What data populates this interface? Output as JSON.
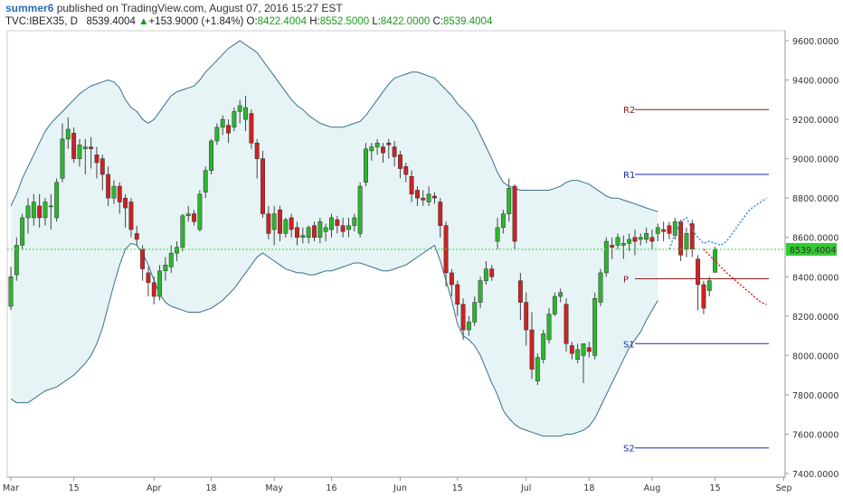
{
  "header": {
    "author": "summer6",
    "published_text": " published on TradingView.com, August 07, 2016 15:27 EST"
  },
  "ticker": {
    "symbol": "TVC:IBEX35, D",
    "last": "8539.4004",
    "change_arrow": "▲",
    "change": "+153.9000 (+1.84%)",
    "o_label": "O:",
    "o_value": "8422.4004",
    "h_label": "H:",
    "h_value": "8552.5000",
    "l_label": "L:",
    "l_value": "8422.0000",
    "c_label": "C:",
    "c_value": "8539.4004"
  },
  "colors": {
    "up": "#2db52d",
    "down": "#cc2222",
    "band_fill": "#e6f4f6",
    "band_line": "#3a6f8a",
    "price_line": "#33dd33",
    "price_tag": "#2fcc2f",
    "r_line": "#8b1a1a",
    "s_line": "#1a2aa8",
    "projection_up": "#3a8ad8",
    "projection_down": "#dd2222"
  },
  "chart_data": {
    "type": "candlestick",
    "y_axis": {
      "min": 7400,
      "max": 9600,
      "ticks": [
        "9600.0000",
        "9400.0000",
        "9200.0000",
        "9000.0000",
        "8800.0000",
        "8600.0000",
        "8400.0000",
        "8200.0000",
        "8000.0000",
        "7800.0000",
        "7600.0000",
        "7400.0000"
      ]
    },
    "x_axis": {
      "labels": [
        "Mar",
        "15",
        "Apr",
        "18",
        "May",
        "16",
        "Jun",
        "15",
        "Jul",
        "18",
        "Aug",
        "15",
        "Sep"
      ],
      "label_index": [
        0,
        11,
        25,
        35,
        46,
        56,
        68,
        78,
        90,
        101,
        112,
        123,
        135
      ]
    },
    "current_price": 8539.4004,
    "current_price_label": "8539.4004",
    "pivots": [
      {
        "label": "R2",
        "value": 9250,
        "kind": "r"
      },
      {
        "label": "R1",
        "value": 8920,
        "kind": "r1"
      },
      {
        "label": "P",
        "value": 8390,
        "kind": "p"
      },
      {
        "label": "S1",
        "value": 8060,
        "kind": "s"
      },
      {
        "label": "S2",
        "value": 7530,
        "kind": "s"
      }
    ],
    "candles": [
      [
        8250,
        8400,
        8230,
        8450
      ],
      [
        8410,
        8560,
        8380,
        8600
      ],
      [
        8560,
        8700,
        8540,
        8720
      ],
      [
        8700,
        8760,
        8620,
        8800
      ],
      [
        8700,
        8780,
        8660,
        8820
      ],
      [
        8760,
        8700,
        8650,
        8820
      ],
      [
        8700,
        8780,
        8660,
        8800
      ],
      [
        8760,
        8760,
        8640,
        8820
      ],
      [
        8700,
        8880,
        8680,
        8900
      ],
      [
        8900,
        9100,
        8880,
        9180
      ],
      [
        9100,
        9150,
        9050,
        9210
      ],
      [
        9130,
        9000,
        8980,
        9160
      ],
      [
        9000,
        9070,
        8960,
        9100
      ],
      [
        9050,
        9060,
        8920,
        9100
      ],
      [
        9060,
        9050,
        8950,
        9110
      ],
      [
        9020,
        8980,
        8900,
        9060
      ],
      [
        9000,
        8920,
        8840,
        9020
      ],
      [
        8920,
        8800,
        8760,
        8960
      ],
      [
        8800,
        8860,
        8770,
        8890
      ],
      [
        8860,
        8780,
        8720,
        8880
      ],
      [
        8800,
        8750,
        8650,
        8820
      ],
      [
        8780,
        8640,
        8600,
        8800
      ],
      [
        8620,
        8590,
        8560,
        8660
      ],
      [
        8540,
        8440,
        8380,
        8560
      ],
      [
        8420,
        8370,
        8300,
        8450
      ],
      [
        8370,
        8300,
        8260,
        8400
      ],
      [
        8300,
        8430,
        8280,
        8460
      ],
      [
        8430,
        8460,
        8380,
        8500
      ],
      [
        8450,
        8520,
        8420,
        8560
      ],
      [
        8520,
        8550,
        8480,
        8580
      ],
      [
        8550,
        8710,
        8530,
        8720
      ],
      [
        8710,
        8720,
        8680,
        8760
      ],
      [
        8720,
        8680,
        8660,
        8740
      ],
      [
        8640,
        8820,
        8630,
        8840
      ],
      [
        8830,
        8940,
        8800,
        8960
      ],
      [
        8940,
        9090,
        8920,
        9100
      ],
      [
        9090,
        9160,
        9070,
        9180
      ],
      [
        9160,
        9200,
        9120,
        9220
      ],
      [
        9170,
        9130,
        9080,
        9200
      ],
      [
        9160,
        9240,
        9140,
        9260
      ],
      [
        9240,
        9270,
        9180,
        9300
      ],
      [
        9200,
        9260,
        9140,
        9320
      ],
      [
        9230,
        9080,
        9050,
        9250
      ],
      [
        9080,
        9000,
        8900,
        9100
      ],
      [
        9000,
        8720,
        8700,
        9040
      ],
      [
        8720,
        8620,
        8590,
        8760
      ],
      [
        8640,
        8720,
        8560,
        8760
      ],
      [
        8740,
        8620,
        8580,
        8760
      ],
      [
        8620,
        8690,
        8600,
        8700
      ],
      [
        8700,
        8640,
        8600,
        8720
      ],
      [
        8650,
        8600,
        8560,
        8680
      ],
      [
        8600,
        8610,
        8570,
        8650
      ],
      [
        8600,
        8650,
        8570,
        8660
      ],
      [
        8660,
        8600,
        8580,
        8680
      ],
      [
        8600,
        8680,
        8570,
        8700
      ],
      [
        8630,
        8650,
        8580,
        8670
      ],
      [
        8640,
        8700,
        8600,
        8720
      ],
      [
        8690,
        8660,
        8620,
        8710
      ],
      [
        8660,
        8630,
        8600,
        8700
      ],
      [
        8640,
        8660,
        8600,
        8700
      ],
      [
        8660,
        8700,
        8630,
        8720
      ],
      [
        8620,
        8860,
        8600,
        8880
      ],
      [
        8880,
        9050,
        8860,
        9080
      ],
      [
        9040,
        9060,
        8990,
        9080
      ],
      [
        9060,
        9080,
        9020,
        9100
      ],
      [
        9060,
        9030,
        8980,
        9080
      ],
      [
        9080,
        9070,
        9000,
        9100
      ],
      [
        9060,
        9010,
        8960,
        9090
      ],
      [
        9020,
        8950,
        8900,
        9040
      ],
      [
        8960,
        8920,
        8880,
        8980
      ],
      [
        8910,
        8820,
        8780,
        8940
      ],
      [
        8840,
        8800,
        8760,
        8860
      ],
      [
        8800,
        8790,
        8760,
        8840
      ],
      [
        8780,
        8820,
        8760,
        8860
      ],
      [
        8810,
        8800,
        8770,
        8830
      ],
      [
        8780,
        8660,
        8600,
        8800
      ],
      [
        8660,
        8420,
        8350,
        8680
      ],
      [
        8420,
        8360,
        8300,
        8440
      ],
      [
        8360,
        8260,
        8200,
        8380
      ],
      [
        8260,
        8130,
        8080,
        8290
      ],
      [
        8130,
        8170,
        8100,
        8200
      ],
      [
        8170,
        8270,
        8150,
        8300
      ],
      [
        8270,
        8380,
        8240,
        8400
      ],
      [
        8380,
        8440,
        8360,
        8480
      ],
      [
        8440,
        8400,
        8380,
        8460
      ],
      [
        8580,
        8650,
        8540,
        8700
      ],
      [
        8650,
        8720,
        8620,
        8740
      ],
      [
        8720,
        8850,
        8680,
        8900
      ],
      [
        8860,
        8580,
        8540,
        8870
      ],
      [
        8380,
        8270,
        8180,
        8420
      ],
      [
        8270,
        8130,
        8050,
        8320
      ],
      [
        8130,
        7930,
        7880,
        8220
      ],
      [
        7870,
        7990,
        7850,
        8010
      ],
      [
        7980,
        8110,
        7960,
        8130
      ],
      [
        8080,
        8210,
        8060,
        8240
      ],
      [
        8210,
        8300,
        8200,
        8320
      ],
      [
        8300,
        8320,
        8270,
        8340
      ],
      [
        8260,
        8060,
        8020,
        8290
      ],
      [
        8050,
        8010,
        7980,
        8070
      ],
      [
        7980,
        8030,
        7960,
        8060
      ],
      [
        8000,
        8060,
        7860,
        8060
      ],
      [
        8040,
        8020,
        7990,
        8070
      ],
      [
        8000,
        8290,
        7980,
        8320
      ],
      [
        8270,
        8420,
        8250,
        8440
      ],
      [
        8420,
        8580,
        8400,
        8600
      ],
      [
        8560,
        8550,
        8490,
        8600
      ],
      [
        8560,
        8600,
        8540,
        8620
      ],
      [
        8560,
        8570,
        8490,
        8610
      ],
      [
        8570,
        8590,
        8530,
        8620
      ],
      [
        8600,
        8580,
        8510,
        8640
      ],
      [
        8590,
        8600,
        8560,
        8620
      ],
      [
        8590,
        8620,
        8570,
        8650
      ],
      [
        8600,
        8580,
        8540,
        8640
      ],
      [
        8620,
        8650,
        8580,
        8670
      ],
      [
        8640,
        8630,
        8580,
        8680
      ],
      [
        8660,
        8620,
        8590,
        8680
      ],
      [
        8610,
        8680,
        8590,
        8700
      ],
      [
        8680,
        8510,
        8480,
        8690
      ],
      [
        8540,
        8620,
        8500,
        8650
      ],
      [
        8670,
        8540,
        8500,
        8690
      ],
      [
        8490,
        8360,
        8230,
        8510
      ],
      [
        8360,
        8240,
        8210,
        8380
      ],
      [
        8330,
        8380,
        8300,
        8400
      ],
      [
        8422.4,
        8539.4,
        8422,
        8552.5
      ]
    ],
    "bollinger": {
      "upper": [
        8760,
        8820,
        8900,
        8960,
        9020,
        9080,
        9140,
        9180,
        9210,
        9240,
        9270,
        9300,
        9330,
        9350,
        9370,
        9380,
        9390,
        9400,
        9390,
        9360,
        9300,
        9260,
        9240,
        9200,
        9180,
        9200,
        9240,
        9280,
        9320,
        9340,
        9350,
        9360,
        9370,
        9400,
        9440,
        9470,
        9500,
        9530,
        9560,
        9580,
        9600,
        9580,
        9560,
        9540,
        9500,
        9460,
        9420,
        9380,
        9340,
        9300,
        9270,
        9250,
        9220,
        9200,
        9180,
        9170,
        9160,
        9160,
        9160,
        9170,
        9180,
        9190,
        9220,
        9260,
        9300,
        9340,
        9380,
        9410,
        9420,
        9430,
        9440,
        9440,
        9430,
        9420,
        9410,
        9380,
        9350,
        9320,
        9280,
        9250,
        9220,
        9180,
        9120,
        9060,
        9000,
        8930,
        8880,
        8860,
        8850,
        8840,
        8840,
        8840,
        8840,
        8840,
        8840,
        8850,
        8860,
        8880,
        8890,
        8890,
        8880,
        8870,
        8850,
        8830,
        8810,
        8800,
        8800,
        8790,
        8780,
        8770,
        8760,
        8750,
        8740,
        8730
      ],
      "lower": [
        7780,
        7760,
        7760,
        7760,
        7780,
        7800,
        7820,
        7830,
        7840,
        7860,
        7880,
        7900,
        7930,
        7960,
        8000,
        8060,
        8140,
        8250,
        8360,
        8460,
        8540,
        8570,
        8560,
        8520,
        8460,
        8380,
        8310,
        8270,
        8250,
        8240,
        8230,
        8220,
        8220,
        8220,
        8230,
        8240,
        8260,
        8280,
        8310,
        8340,
        8380,
        8420,
        8460,
        8500,
        8520,
        8500,
        8480,
        8460,
        8440,
        8430,
        8420,
        8420,
        8410,
        8410,
        8420,
        8430,
        8430,
        8440,
        8450,
        8460,
        8470,
        8470,
        8460,
        8450,
        8440,
        8430,
        8430,
        8440,
        8450,
        8460,
        8480,
        8500,
        8520,
        8540,
        8560,
        8480,
        8380,
        8280,
        8160,
        8100,
        8080,
        8050,
        8000,
        7930,
        7860,
        7800,
        7720,
        7680,
        7650,
        7630,
        7620,
        7610,
        7600,
        7590,
        7590,
        7590,
        7590,
        7600,
        7600,
        7610,
        7620,
        7640,
        7680,
        7740,
        7800,
        7860,
        7920,
        7980,
        8040,
        8080,
        8120,
        8180,
        8230,
        8280
      ]
    },
    "projection_up": [
      [
        115,
        8540
      ],
      [
        116,
        8620
      ],
      [
        117,
        8680
      ],
      [
        118,
        8700
      ],
      [
        119,
        8640
      ],
      [
        120,
        8600
      ],
      [
        121,
        8570
      ],
      [
        122,
        8580
      ],
      [
        123,
        8570
      ],
      [
        124,
        8560
      ],
      [
        125,
        8580
      ],
      [
        126,
        8620
      ],
      [
        127,
        8660
      ],
      [
        128,
        8700
      ],
      [
        129,
        8740
      ],
      [
        130,
        8760
      ],
      [
        131,
        8780
      ],
      [
        132,
        8800
      ]
    ],
    "projection_down": [
      [
        121,
        8540
      ],
      [
        123,
        8480
      ],
      [
        125,
        8420
      ],
      [
        127,
        8370
      ],
      [
        129,
        8320
      ],
      [
        131,
        8270
      ],
      [
        132,
        8260
      ]
    ]
  }
}
